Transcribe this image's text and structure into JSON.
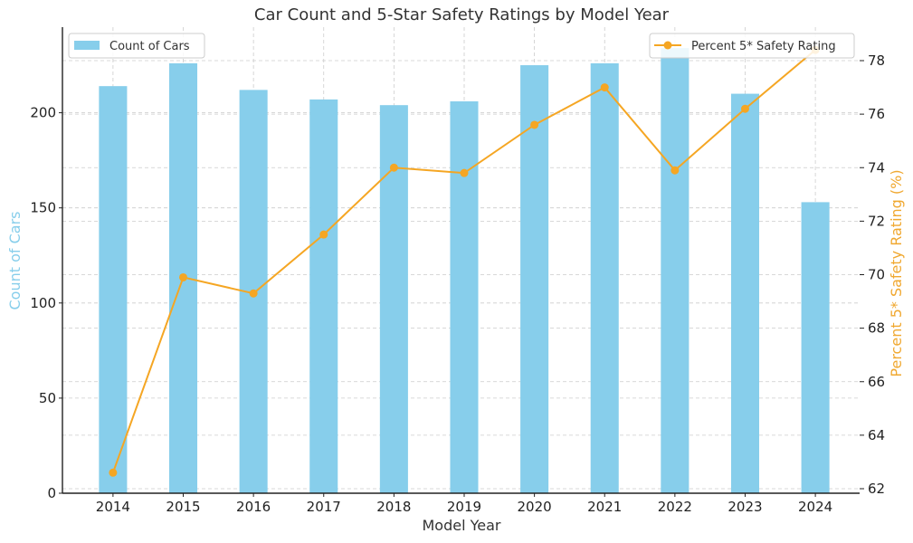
{
  "chart_data": {
    "type": "bar",
    "title": "Car Count and 5-Star Safety Ratings by Model Year",
    "xlabel": "Model Year",
    "ylabel": "Count of Cars",
    "y2label": "Percent 5* Safety Rating (%)",
    "categories": [
      "2014",
      "2015",
      "2016",
      "2017",
      "2018",
      "2019",
      "2020",
      "2021",
      "2022",
      "2023",
      "2024"
    ],
    "ylim": [
      0,
      245
    ],
    "y_ticks": [
      0,
      50,
      100,
      150,
      200
    ],
    "y2lim": [
      62,
      79
    ],
    "y2_ticks": [
      62,
      64,
      66,
      68,
      70,
      72,
      74,
      76,
      78
    ],
    "grid": true,
    "series": [
      {
        "name": "Count of Cars",
        "type": "bar",
        "axis": "left",
        "color": "#87ceeb",
        "values": [
          214,
          226,
          212,
          207,
          204,
          206,
          225,
          226,
          234,
          210,
          153
        ]
      },
      {
        "name": "Percent 5* Safety Rating",
        "type": "line",
        "axis": "right",
        "color": "#f5a623",
        "marker": "circle",
        "values": [
          62.6,
          69.9,
          69.3,
          71.5,
          74.0,
          73.8,
          75.6,
          77.0,
          73.9,
          76.2,
          78.4
        ]
      }
    ],
    "legends": [
      {
        "label": "Count of Cars",
        "placement": "top-left"
      },
      {
        "label": "Percent 5* Safety Rating",
        "placement": "top-right"
      }
    ],
    "ylabel_color": "#87ceeb",
    "y2label_color": "#f0a830"
  }
}
